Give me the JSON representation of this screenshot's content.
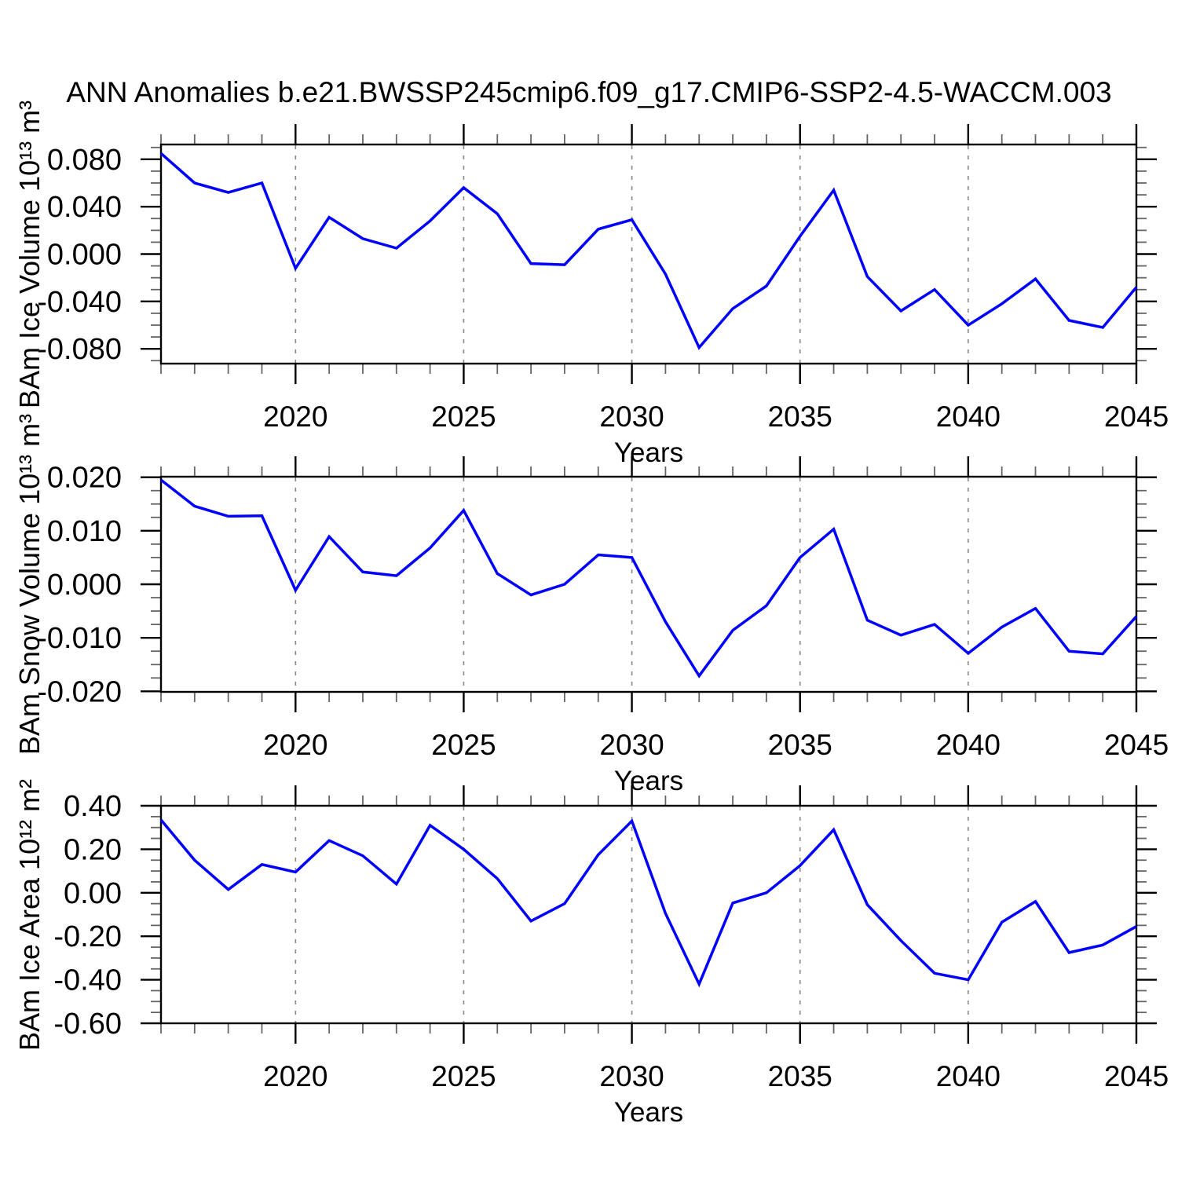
{
  "title": "ANN Anomalies b.e21.BWSSP245cmip6.f09_g17.CMIP6-SSP2-4.5-WACCM.003",
  "colors": {
    "line": "#0000ff",
    "axis": "#000000",
    "minor_tick": "#666666",
    "grid": "#888888",
    "background": "#ffffff",
    "text": "#000000"
  },
  "chart_data": [
    {
      "type": "line",
      "ylabel": "BAm Ice Volume 10¹³ m³",
      "xlabel": "Years",
      "x": [
        2016,
        2017,
        2018,
        2019,
        2020,
        2021,
        2022,
        2023,
        2024,
        2025,
        2026,
        2027,
        2028,
        2029,
        2030,
        2031,
        2032,
        2033,
        2034,
        2035,
        2036,
        2037,
        2038,
        2039,
        2040,
        2041,
        2042,
        2043,
        2044,
        2045
      ],
      "values": [
        0.085,
        0.06,
        0.052,
        0.06,
        -0.012,
        0.031,
        0.013,
        0.005,
        0.028,
        0.056,
        0.034,
        -0.008,
        -0.009,
        0.021,
        0.029,
        -0.017,
        -0.079,
        -0.046,
        -0.027,
        0.015,
        0.054,
        -0.019,
        -0.048,
        -0.03,
        -0.06,
        -0.042,
        -0.021,
        -0.056,
        -0.062,
        -0.028
      ],
      "xlim": [
        2016,
        2045
      ],
      "ylim": [
        -0.0925,
        0.0925
      ],
      "x_major_ticks": [
        2020,
        2025,
        2030,
        2035,
        2040,
        2045
      ],
      "x_minor_step": 1,
      "y_major_ticks": [
        {
          "value": 0.08,
          "label": "0.080"
        },
        {
          "value": 0.04,
          "label": "0.040"
        },
        {
          "value": 0.0,
          "label": "0.000"
        },
        {
          "value": -0.04,
          "label": "-0.040"
        },
        {
          "value": -0.08,
          "label": "-0.080"
        }
      ],
      "y_minor_step": 0.01,
      "grid": "vertical dashed at major x ticks",
      "legend": "none"
    },
    {
      "type": "line",
      "ylabel": "BAm Snow Volume 10¹³ m³",
      "xlabel": "Years",
      "x": [
        2016,
        2017,
        2018,
        2019,
        2020,
        2021,
        2022,
        2023,
        2024,
        2025,
        2026,
        2027,
        2028,
        2029,
        2030,
        2031,
        2032,
        2033,
        2034,
        2035,
        2036,
        2037,
        2038,
        2039,
        2040,
        2041,
        2042,
        2043,
        2044,
        2045
      ],
      "values": [
        0.0195,
        0.0146,
        0.0127,
        0.0128,
        -0.0011,
        0.0089,
        0.0023,
        0.0016,
        0.0068,
        0.0138,
        0.002,
        -0.002,
        0.0,
        0.0055,
        0.005,
        -0.007,
        -0.0171,
        -0.0086,
        -0.004,
        0.005,
        0.0103,
        -0.0067,
        -0.0095,
        -0.0075,
        -0.0129,
        -0.008,
        -0.0045,
        -0.0125,
        -0.013,
        -0.006
      ],
      "xlim": [
        2016,
        2045
      ],
      "ylim": [
        -0.0201,
        0.0201
      ],
      "x_major_ticks": [
        2020,
        2025,
        2030,
        2035,
        2040,
        2045
      ],
      "x_minor_step": 1,
      "y_major_ticks": [
        {
          "value": 0.02,
          "label": "0.020"
        },
        {
          "value": 0.01,
          "label": "0.010"
        },
        {
          "value": 0.0,
          "label": "0.000"
        },
        {
          "value": -0.01,
          "label": "-0.010"
        },
        {
          "value": -0.02,
          "label": "-0.020"
        }
      ],
      "y_minor_step": 0.0025,
      "grid": "vertical dashed at major x ticks",
      "legend": "none"
    },
    {
      "type": "line",
      "ylabel": "BAm Ice Area 10¹² m²",
      "xlabel": "Years",
      "x": [
        2016,
        2017,
        2018,
        2019,
        2020,
        2021,
        2022,
        2023,
        2024,
        2025,
        2026,
        2027,
        2028,
        2029,
        2030,
        2031,
        2032,
        2033,
        2034,
        2035,
        2036,
        2037,
        2038,
        2039,
        2040,
        2041,
        2042,
        2043,
        2044,
        2045
      ],
      "values": [
        0.335,
        0.15,
        0.015,
        0.13,
        0.095,
        0.24,
        0.17,
        0.04,
        0.31,
        0.2,
        0.065,
        -0.13,
        -0.05,
        0.175,
        0.33,
        -0.095,
        -0.42,
        -0.047,
        0.0,
        0.125,
        0.29,
        -0.055,
        -0.22,
        -0.37,
        -0.4,
        -0.135,
        -0.04,
        -0.275,
        -0.24,
        -0.155
      ],
      "xlim": [
        2016,
        2045
      ],
      "ylim": [
        -0.6,
        0.4
      ],
      "x_major_ticks": [
        2020,
        2025,
        2030,
        2035,
        2040,
        2045
      ],
      "x_minor_step": 1,
      "y_major_ticks": [
        {
          "value": 0.4,
          "label": "0.40"
        },
        {
          "value": 0.2,
          "label": "0.20"
        },
        {
          "value": 0.0,
          "label": "0.00"
        },
        {
          "value": -0.2,
          "label": "-0.20"
        },
        {
          "value": -0.4,
          "label": "-0.40"
        },
        {
          "value": -0.6,
          "label": "-0.60"
        }
      ],
      "y_minor_step": 0.05,
      "grid": "vertical dashed at major x ticks",
      "legend": "none"
    }
  ]
}
